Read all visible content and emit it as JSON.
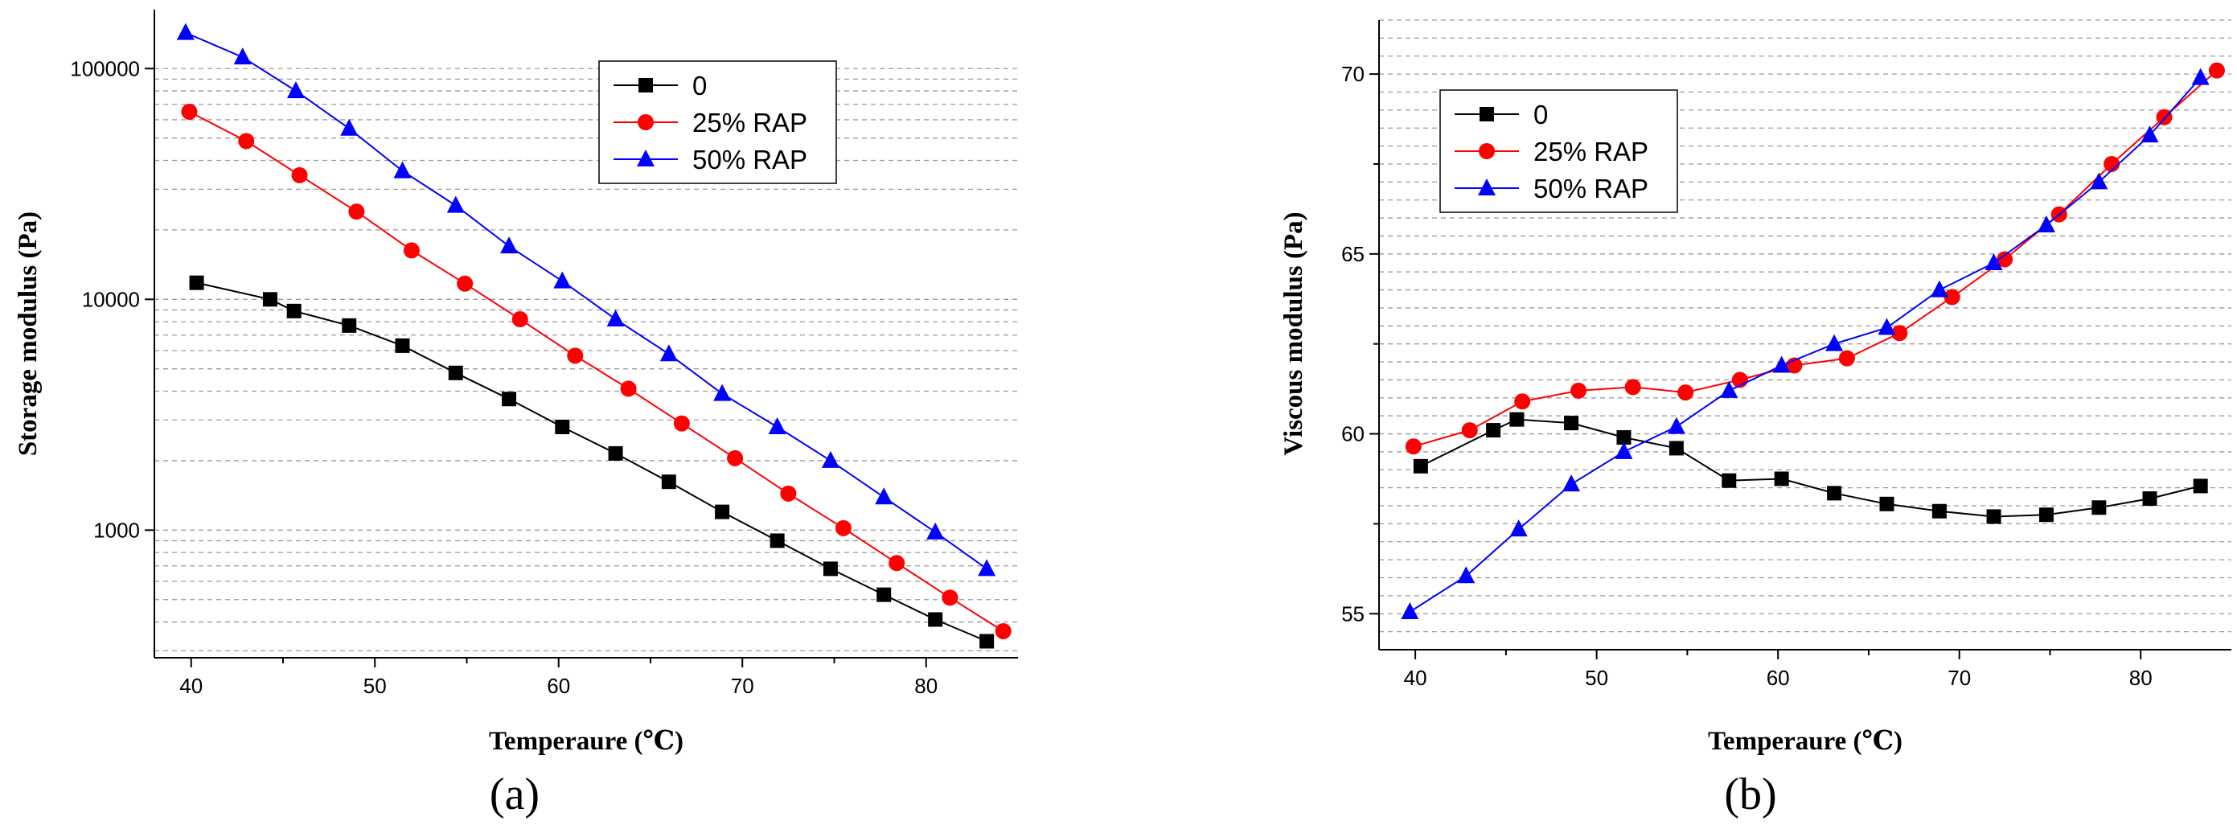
{
  "colors": {
    "0": "#000000",
    "25% RAP": "#ff0000",
    "50% RAP": "#0000ff",
    "grid": "#9a9a9a"
  },
  "chart_data": [
    {
      "panel_label": "(a)",
      "type": "line",
      "xlabel": "Temperaure (℃)",
      "ylabel": "Storage modulus (Pa)",
      "yscale": "log",
      "xlim": [
        38,
        85
      ],
      "ylim": [
        280,
        180000
      ],
      "x_ticks": [
        40,
        50,
        60,
        70,
        80
      ],
      "y_ticks": [
        1000,
        10000,
        100000
      ],
      "y_tick_labels": [
        "1000",
        "10000",
        "100000"
      ],
      "grid": "horizontal dashed at minor log ticks",
      "legend_position": "top-center",
      "series": [
        {
          "name": "0",
          "marker": "square",
          "x": [
            40.3,
            44.3,
            45.6,
            48.6,
            51.5,
            54.4,
            57.3,
            60.2,
            63.1,
            66.0,
            68.9,
            71.9,
            74.8,
            77.7,
            80.5,
            83.3
          ],
          "y": [
            11800,
            10000,
            8900,
            7700,
            6300,
            4800,
            3700,
            2800,
            2150,
            1620,
            1200,
            900,
            680,
            525,
            410,
            330
          ]
        },
        {
          "name": "25% RAP",
          "marker": "circle",
          "x": [
            39.9,
            43.0,
            45.9,
            49.0,
            52.0,
            54.9,
            57.9,
            60.9,
            63.8,
            66.7,
            69.6,
            72.5,
            75.5,
            78.4,
            81.3,
            84.2
          ],
          "y": [
            65000,
            48500,
            34500,
            24000,
            16300,
            11700,
            8200,
            5700,
            4100,
            2900,
            2050,
            1440,
            1020,
            720,
            510,
            365
          ]
        },
        {
          "name": "50% RAP",
          "marker": "triangle",
          "x": [
            39.7,
            42.8,
            45.7,
            48.6,
            51.5,
            54.4,
            57.3,
            60.2,
            63.1,
            66.0,
            68.9,
            71.9,
            74.8,
            77.7,
            80.5,
            83.3
          ],
          "y": [
            143000,
            112000,
            80000,
            55000,
            36000,
            25500,
            17000,
            12000,
            8200,
            5800,
            3900,
            2800,
            2000,
            1390,
            980,
            680
          ]
        }
      ]
    },
    {
      "panel_label": "(b)",
      "type": "line",
      "xlabel": "Temperaure (℃)",
      "ylabel": "Viscous modulus (Pa)",
      "xlim": [
        38,
        85
      ],
      "ylim": [
        54,
        71.5
      ],
      "x_ticks": [
        40,
        50,
        60,
        70,
        80
      ],
      "y_ticks": [
        55,
        60,
        65,
        70
      ],
      "grid": "horizontal dashed every 0.5 Pa",
      "legend_position": "top-left",
      "series": [
        {
          "name": "0",
          "marker": "square",
          "x": [
            40.3,
            44.3,
            45.6,
            48.6,
            51.5,
            54.4,
            57.3,
            60.2,
            63.1,
            66.0,
            68.9,
            71.9,
            74.8,
            77.7,
            80.5,
            83.3
          ],
          "y": [
            59.1,
            60.1,
            60.4,
            60.3,
            59.9,
            59.6,
            58.7,
            58.75,
            58.35,
            58.05,
            57.85,
            57.7,
            57.75,
            57.95,
            58.2,
            58.55
          ]
        },
        {
          "name": "25% RAP",
          "marker": "circle",
          "x": [
            39.9,
            43.0,
            45.9,
            49.0,
            52.0,
            54.9,
            57.9,
            60.9,
            63.8,
            66.7,
            69.6,
            72.5,
            75.5,
            78.4,
            81.3,
            84.2
          ],
          "y": [
            59.65,
            60.1,
            60.9,
            61.2,
            61.3,
            61.15,
            61.5,
            61.9,
            62.1,
            62.8,
            63.8,
            64.85,
            66.1,
            67.5,
            68.8,
            70.1
          ]
        },
        {
          "name": "50% RAP",
          "marker": "triangle",
          "x": [
            39.7,
            42.8,
            45.7,
            48.6,
            51.5,
            54.4,
            57.3,
            60.2,
            63.1,
            66.0,
            68.9,
            71.9,
            74.8,
            77.7,
            80.5,
            83.3
          ],
          "y": [
            55.05,
            56.05,
            57.35,
            58.6,
            59.5,
            60.2,
            61.2,
            61.9,
            62.5,
            62.95,
            64.0,
            64.75,
            65.8,
            67.0,
            68.3,
            69.9
          ]
        }
      ]
    }
  ]
}
